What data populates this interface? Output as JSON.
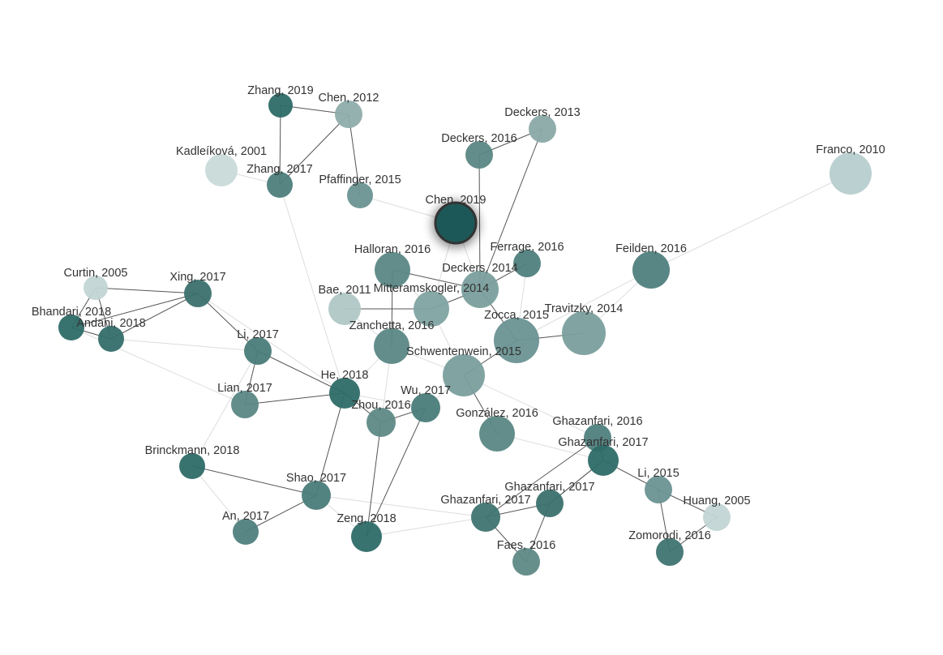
{
  "nodes": [
    {
      "label": "Zhang, 2019"
    },
    {
      "label": "Chen, 2012"
    },
    {
      "label": "Kadleíková, 2001"
    },
    {
      "label": "Zhang, 2017"
    },
    {
      "label": "Pfaffinger, 2015"
    },
    {
      "label": "Deckers, 2013"
    },
    {
      "label": "Deckers, 2016"
    },
    {
      "label": "Chen, 2019"
    },
    {
      "label": "Franco, 2010"
    },
    {
      "label": "Ferrage, 2016"
    },
    {
      "label": "Feilden, 2016"
    },
    {
      "label": "Halloran, 2016"
    },
    {
      "label": "Deckers, 2014"
    },
    {
      "label": "Curtin, 2005"
    },
    {
      "label": "Xing, 2017"
    },
    {
      "label": "Bae, 2011"
    },
    {
      "label": "Mitteramskogler, 2014"
    },
    {
      "label": "Bhandari, 2018"
    },
    {
      "label": "Andani, 2018"
    },
    {
      "label": "Travitzky, 2014"
    },
    {
      "label": "Zocca, 2015"
    },
    {
      "label": "Zanchetta, 2016"
    },
    {
      "label": "Li, 2017"
    },
    {
      "label": "Schwentenwein, 2015"
    },
    {
      "label": "He, 2018"
    },
    {
      "label": "Wu, 2017"
    },
    {
      "label": "Lian, 2017"
    },
    {
      "label": "Zhou, 2016"
    },
    {
      "label": "González, 2016"
    },
    {
      "label": "Ghazanfari, 2016"
    },
    {
      "label": "Ghazanfari, 2017"
    },
    {
      "label": "Brinckmann, 2018"
    },
    {
      "label": "Li, 2015"
    },
    {
      "label": "Shao, 2017"
    },
    {
      "label": "Huang, 2005"
    },
    {
      "label": "Ghazanfari, 2017"
    },
    {
      "label": "Ghazanfari, 2017"
    },
    {
      "label": "An, 2017"
    },
    {
      "label": "Zeng, 2018"
    },
    {
      "label": "Zomorodi, 2016"
    },
    {
      "label": "Faes, 2016"
    }
  ]
}
